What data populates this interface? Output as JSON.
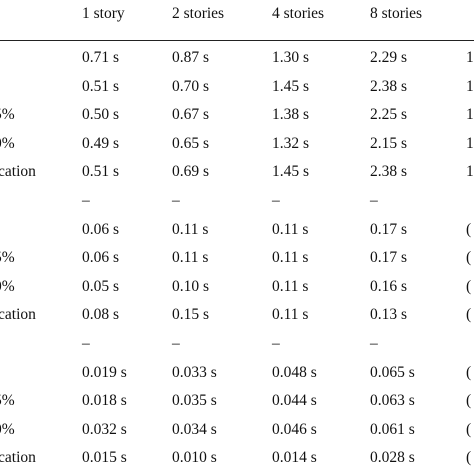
{
  "header": {
    "columns": [
      "1 story",
      "2 stories",
      "4 stories",
      "8 stories"
    ]
  },
  "table": {
    "rows": [
      {
        "cells": [
          "0.71 s",
          "0.87 s",
          "1.30 s",
          "2.29 s"
        ],
        "edge": "1"
      },
      {
        "cells": [
          "0.51 s",
          "0.70 s",
          "1.45 s",
          "2.38 s"
        ],
        "edge": "1"
      },
      {
        "label": "5%",
        "cells": [
          "0.50 s",
          "0.67 s",
          "1.38 s",
          "2.25 s"
        ],
        "edge": "1"
      },
      {
        "label": "0%",
        "cells": [
          "0.49 s",
          "0.65 s",
          "1.32 s",
          "2.15 s"
        ],
        "edge": "1"
      },
      {
        "label": "cation",
        "cells": [
          "0.51 s",
          "0.69 s",
          "1.45 s",
          "2.38 s"
        ],
        "edge": "1"
      },
      {
        "cells": [
          "–",
          "–",
          "–",
          "–"
        ]
      },
      {
        "cells": [
          "0.06 s",
          "0.11 s",
          "0.11 s",
          "0.17 s"
        ],
        "edge": "("
      },
      {
        "label": "5%",
        "cells": [
          "0.06 s",
          "0.11 s",
          "0.11 s",
          "0.17 s"
        ],
        "edge": "("
      },
      {
        "label": "0%",
        "cells": [
          "0.05 s",
          "0.10 s",
          "0.11 s",
          "0.16 s"
        ],
        "edge": "("
      },
      {
        "label": "cation",
        "cells": [
          "0.08 s",
          "0.15 s",
          "0.11 s",
          "0.13 s"
        ],
        "edge": "("
      },
      {
        "cells": [
          "–",
          "–",
          "–",
          "–"
        ]
      },
      {
        "cells": [
          "0.019 s",
          "0.033 s",
          "0.048 s",
          "0.065 s"
        ],
        "edge": "("
      },
      {
        "label": "5%",
        "cells": [
          "0.018 s",
          "0.035 s",
          "0.044 s",
          "0.063 s"
        ],
        "edge": "("
      },
      {
        "label": "0%",
        "cells": [
          "0.032 s",
          "0.034 s",
          "0.046 s",
          "0.061 s"
        ],
        "edge": "("
      },
      {
        "label": "cation",
        "cells": [
          "0.015 s",
          "0.010 s",
          "0.014 s",
          "0.028 s"
        ],
        "edge": "("
      }
    ]
  }
}
